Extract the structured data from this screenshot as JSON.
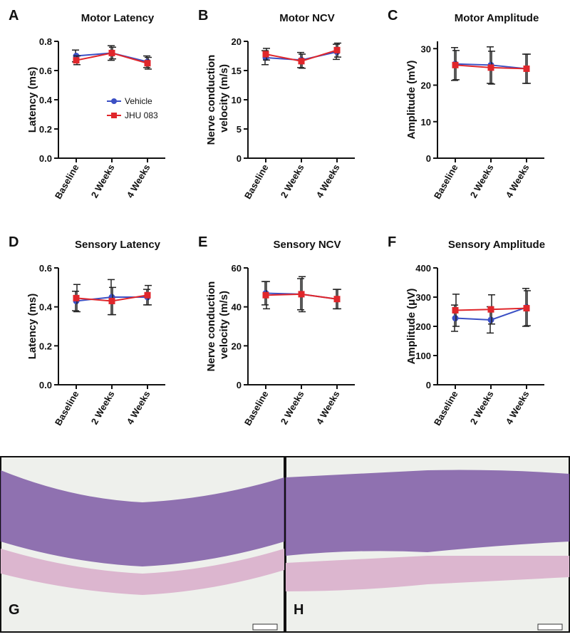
{
  "chart_data": [
    {
      "type": "line",
      "panel": "A",
      "title": "Motor Latency",
      "ylabel": "Latency (ms)",
      "categories": [
        "Baseline",
        "2 Weeks",
        "4 Weeks"
      ],
      "ylim": [
        0,
        0.8
      ],
      "yticks": [
        {
          "value": 0,
          "label": "0.0"
        },
        0.2,
        0.4,
        0.6,
        0.8
      ],
      "legend": "center",
      "series": [
        {
          "name": "Vehicle",
          "color": "#3b4fc4",
          "marker": "circle",
          "values": [
            0.7,
            0.72,
            0.66
          ],
          "errors": [
            0.04,
            0.05,
            0.04
          ]
        },
        {
          "name": "JHU 083",
          "color": "#e0262b",
          "marker": "square",
          "values": [
            0.67,
            0.72,
            0.65
          ],
          "errors": [
            0.03,
            0.04,
            0.04
          ]
        }
      ]
    },
    {
      "type": "line",
      "panel": "B",
      "title": "Motor NCV",
      "ylabel": "Nerve conduction velocity (m/s)",
      "categories": [
        "Baseline",
        "2 Weeks",
        "4 Weeks"
      ],
      "ylim": [
        0,
        20
      ],
      "yticks": [
        0,
        5,
        10,
        15,
        20
      ],
      "series": [
        {
          "color": "#3b4fc4",
          "marker": "circle",
          "values": [
            17.2,
            16.8,
            18.2
          ],
          "errors": [
            1.2,
            1.3,
            1.3
          ]
        },
        {
          "color": "#e0262b",
          "marker": "square",
          "values": [
            17.8,
            16.6,
            18.5
          ],
          "errors": [
            1.0,
            1.2,
            1.2
          ]
        }
      ]
    },
    {
      "type": "line",
      "panel": "C",
      "title": "Motor Amplitude",
      "ylabel": "Amplitude (mV)",
      "categories": [
        "Baseline",
        "2 Weeks",
        "4 Weeks"
      ],
      "ylim": [
        0,
        32
      ],
      "yticks": [
        0,
        10,
        20,
        30
      ],
      "series": [
        {
          "color": "#3b4fc4",
          "marker": "circle",
          "values": [
            25.8,
            25.5,
            24.5
          ],
          "errors": [
            4.5,
            5,
            4
          ]
        },
        {
          "color": "#e0262b",
          "marker": "square",
          "values": [
            25.5,
            24.8,
            24.5
          ],
          "errors": [
            4,
            4.5,
            4
          ]
        }
      ]
    },
    {
      "type": "line",
      "panel": "D",
      "title": "Sensory Latency",
      "ylabel": "Latency (ms)",
      "categories": [
        "Baseline",
        "2 Weeks",
        "4 Weeks"
      ],
      "ylim": [
        0,
        0.6
      ],
      "yticks": [
        {
          "value": 0,
          "label": "0.0"
        },
        0.2,
        0.4,
        0.6
      ],
      "series": [
        {
          "color": "#3b4fc4",
          "marker": "circle",
          "values": [
            0.43,
            0.45,
            0.45
          ],
          "errors": [
            0.05,
            0.09,
            0.04
          ]
        },
        {
          "color": "#e0262b",
          "marker": "square",
          "values": [
            0.445,
            0.43,
            0.46
          ],
          "errors": [
            0.07,
            0.07,
            0.05
          ]
        }
      ]
    },
    {
      "type": "line",
      "panel": "E",
      "title": "Sensory NCV",
      "ylabel": "Nerve conduction velocity (m/s)",
      "categories": [
        "Baseline",
        "2 Weeks",
        "4 Weeks"
      ],
      "ylim": [
        0,
        60
      ],
      "yticks": [
        0,
        20,
        40,
        60
      ],
      "series": [
        {
          "color": "#3b4fc4",
          "marker": "circle",
          "values": [
            47,
            46.5,
            44
          ],
          "errors": [
            6,
            8,
            5
          ]
        },
        {
          "color": "#e0262b",
          "marker": "square",
          "values": [
            46,
            46.5,
            44
          ],
          "errors": [
            7,
            9,
            5
          ]
        }
      ]
    },
    {
      "type": "line",
      "panel": "F",
      "title": "Sensory Amplitude",
      "ylabel": "Amplitude (μV)",
      "categories": [
        "Baseline",
        "2 Weeks",
        "4 Weeks"
      ],
      "ylim": [
        0,
        400
      ],
      "yticks": [
        0,
        100,
        200,
        300,
        400
      ],
      "series": [
        {
          "color": "#3b4fc4",
          "marker": "circle",
          "values": [
            228,
            222,
            265
          ],
          "errors": [
            45,
            45,
            65
          ]
        },
        {
          "color": "#e0262b",
          "marker": "square",
          "values": [
            255,
            258,
            262
          ],
          "errors": [
            55,
            50,
            60
          ]
        }
      ]
    }
  ],
  "images": [
    {
      "label": "G"
    },
    {
      "label": "H"
    }
  ]
}
